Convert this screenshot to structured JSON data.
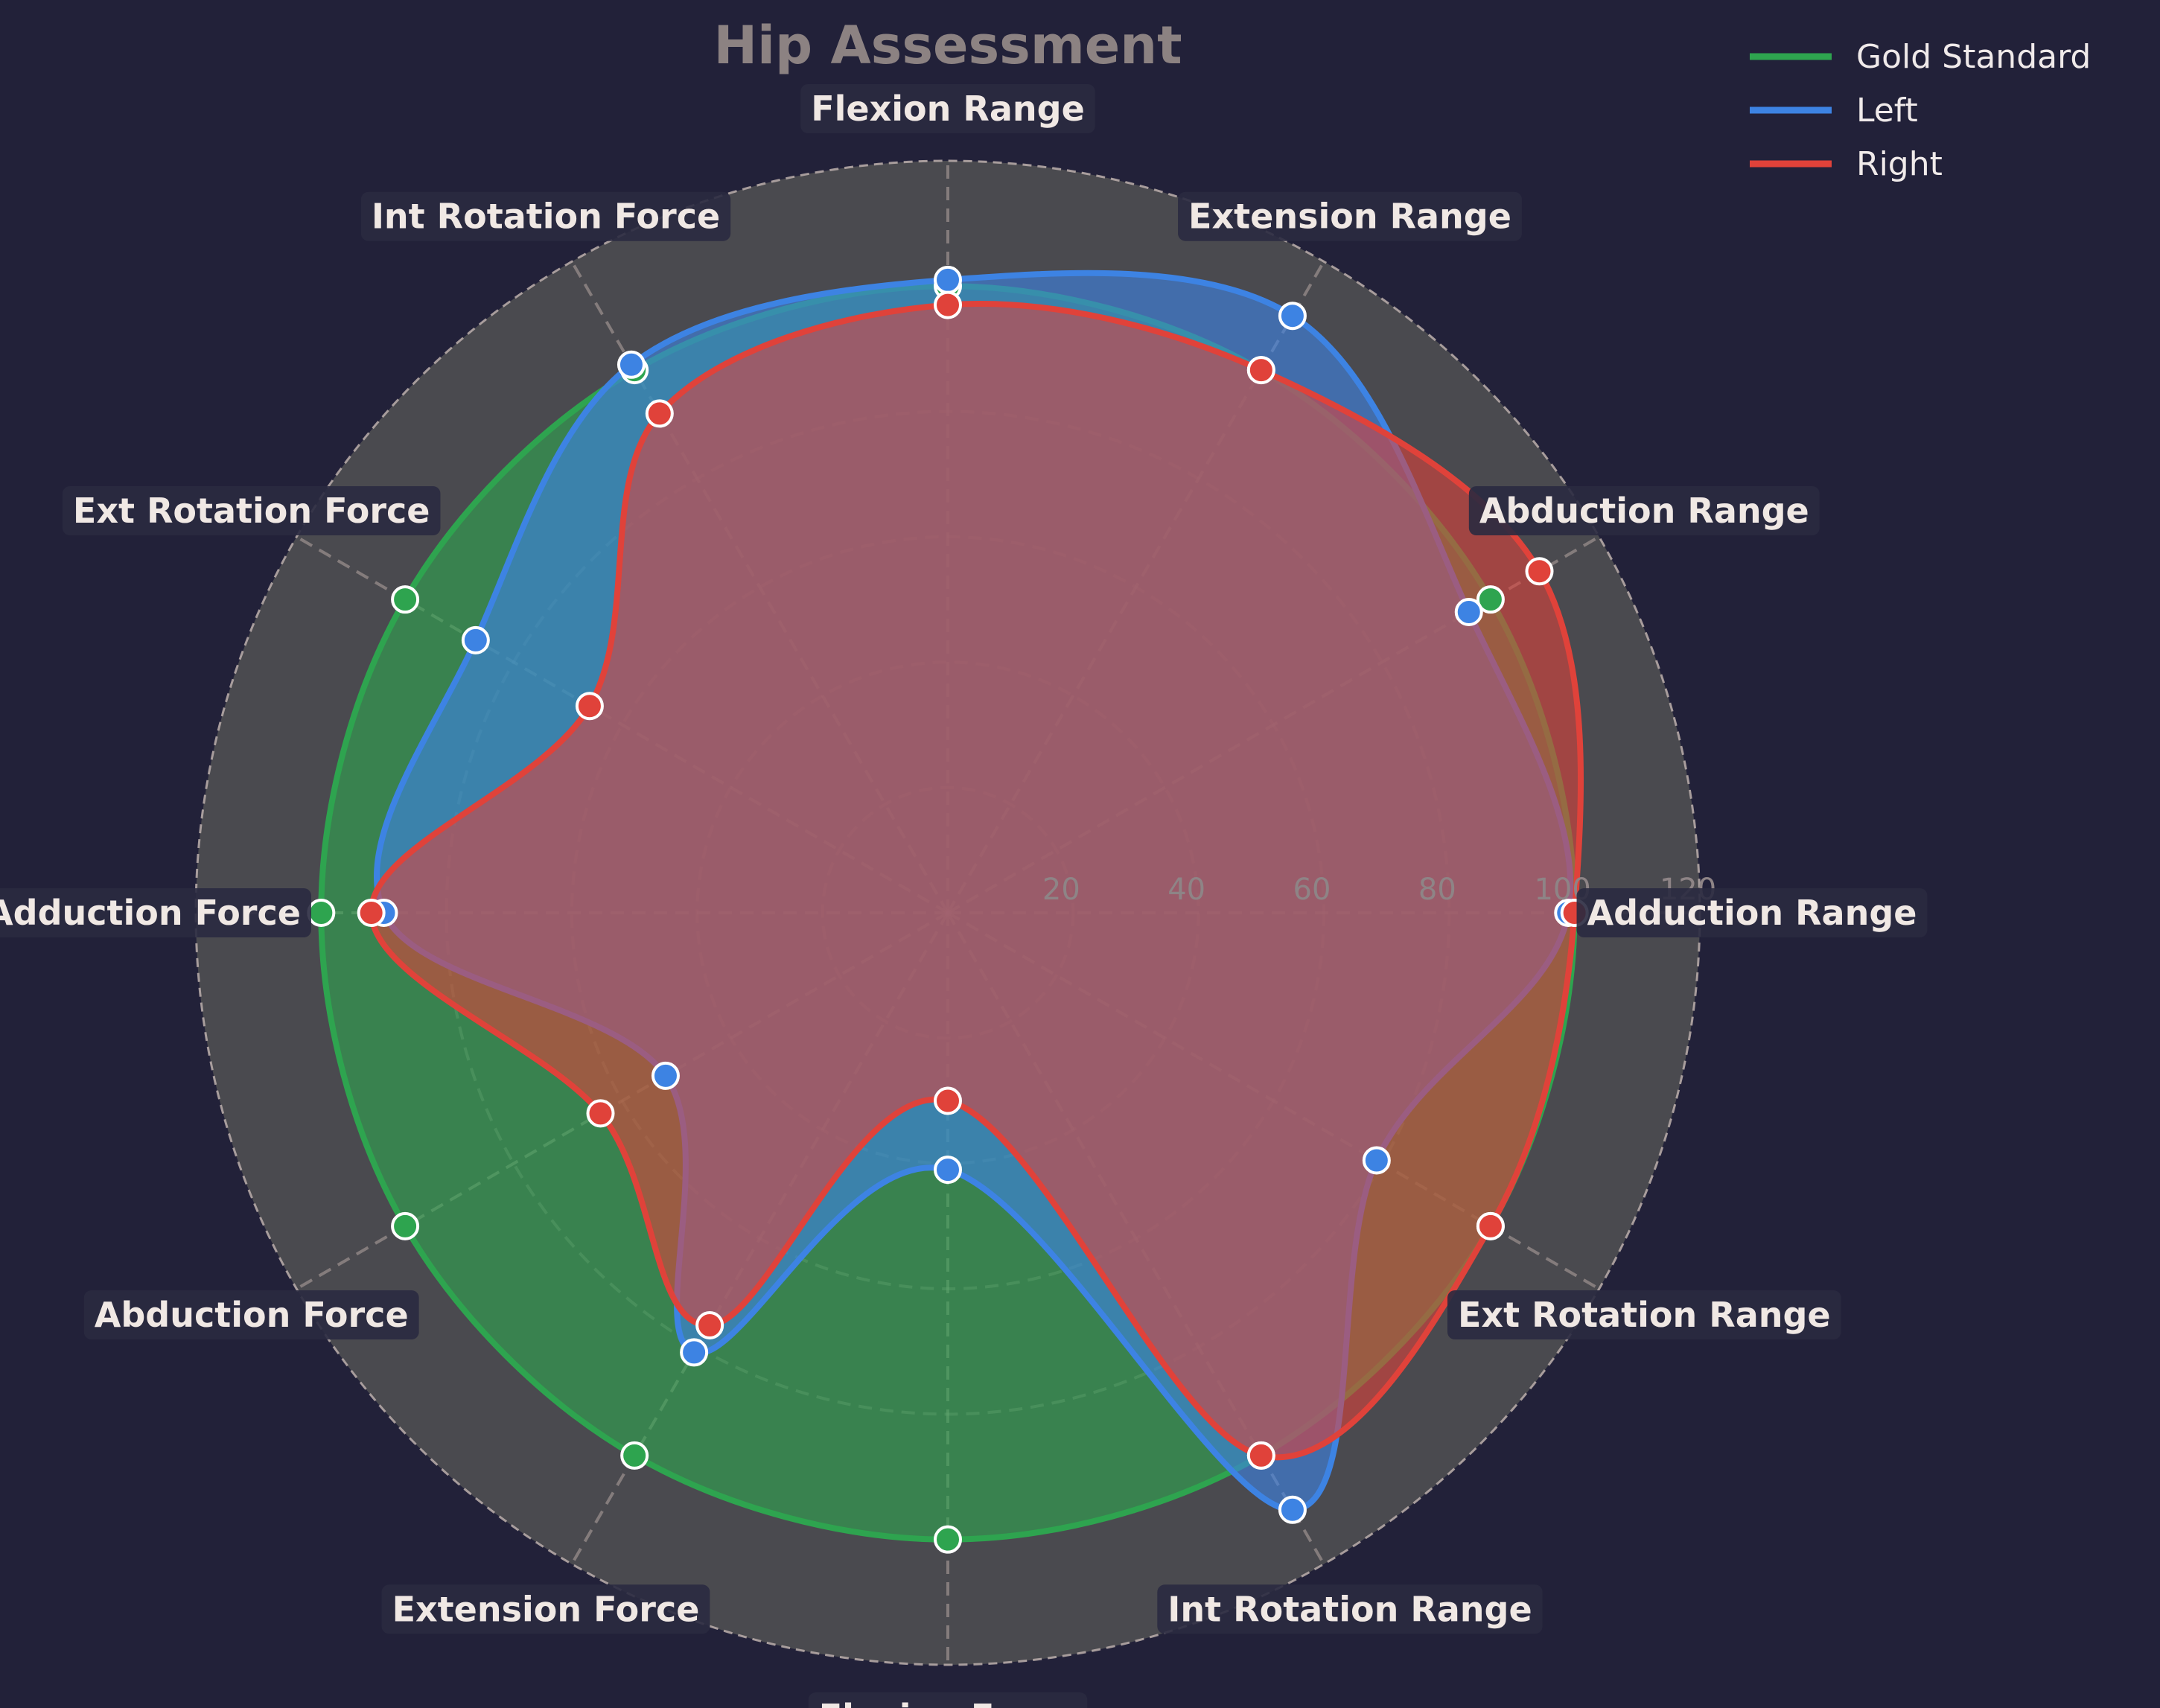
{
  "chart_data": {
    "type": "radar",
    "title": "Hip Assessment",
    "categories": [
      "Adduction Range",
      "Abduction Range",
      "Extension Range",
      "Flexion Range",
      "Int Rotation Force",
      "Ext Rotation Force",
      "Adduction Force",
      "Abduction Force",
      "Extension Force",
      "Flexion Force",
      "Int Rotation Range",
      "Ext Rotation Range"
    ],
    "rlim": [
      0,
      120
    ],
    "rticks": [
      20,
      40,
      60,
      80,
      100,
      120
    ],
    "grid": true,
    "legend_position": "top-right",
    "series": [
      {
        "name": "Gold Standard",
        "color": "#2ea44f",
        "values": [
          100,
          100,
          100,
          100,
          100,
          100,
          100,
          100,
          100,
          100,
          100,
          100
        ]
      },
      {
        "name": "Left",
        "color": "#3d83e3",
        "values": [
          99,
          96,
          110,
          101,
          101,
          87,
          90,
          52,
          81,
          41,
          110,
          79
        ]
      },
      {
        "name": "Right",
        "color": "#e0423a",
        "values": [
          100,
          109,
          100,
          97,
          92,
          66,
          92,
          64,
          76,
          30,
          100,
          100
        ]
      }
    ]
  }
}
